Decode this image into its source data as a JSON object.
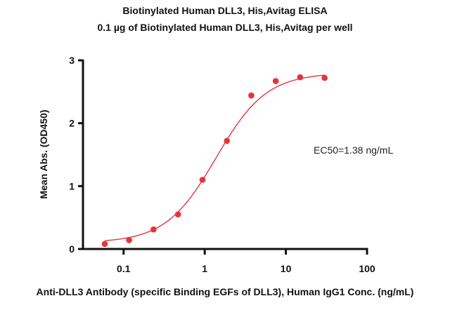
{
  "chart_data": {
    "type": "scatter",
    "title": "Biotinylated Human DLL3, His,Avitag ELISA",
    "subtitle": "0.1 µg of Biotinylated Human DLL3, His,Avitag per well",
    "xlabel": "Anti-DLL3 Antibody (specific Binding EGFs of DLL3), Human IgG1 Conc. (ng/mL)",
    "ylabel": "Mean Abs. (OD450)",
    "x_scale": "log",
    "xlim": [
      0.0316,
      100
    ],
    "ylim": [
      0,
      3
    ],
    "x_ticks": [
      "0.1",
      "1",
      "10",
      "100"
    ],
    "y_ticks": [
      "0",
      "1",
      "2",
      "3"
    ],
    "grid": false,
    "color": "#e8323c",
    "series": [
      {
        "x": [
          0.0586,
          0.117,
          0.234,
          0.469,
          0.938,
          1.875,
          3.75,
          7.5,
          15,
          30
        ],
        "y": [
          0.08,
          0.14,
          0.31,
          0.55,
          1.1,
          1.72,
          2.44,
          2.67,
          2.73,
          2.72
        ]
      }
    ],
    "fit": {
      "model": "4PL",
      "bottom": 0.1,
      "top": 2.8,
      "ec50": 1.38,
      "hill": 1.4
    },
    "annotation": "EC50=1.38 ng/mL"
  }
}
